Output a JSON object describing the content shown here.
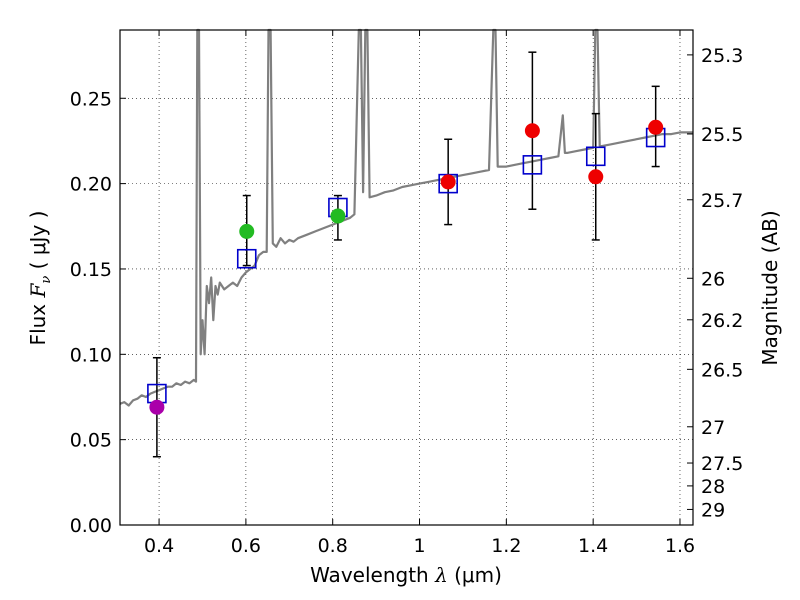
{
  "chart_data": {
    "type": "scatter",
    "xlabel_text": "Wavelength",
    "xlabel_symbol": "λ",
    "xlabel_unit": "(μm)",
    "ylabel_text": "Flux",
    "ylabel_symbol": "F",
    "ylabel_subscript": "ν",
    "ylabel_unit": "( μJy )",
    "ylabel_right": "Magnitude (AB)",
    "xlim": [
      0.31,
      1.63
    ],
    "ylim": [
      0.0,
      0.29
    ],
    "grid": true,
    "x_ticks": [
      0.4,
      0.6,
      0.8,
      1.0,
      1.2,
      1.4,
      1.6
    ],
    "x_tick_labels": [
      "0.4",
      "0.6",
      "0.8",
      "1",
      "1.2",
      "1.4",
      "1.6"
    ],
    "y_ticks": [
      0.0,
      0.05,
      0.1,
      0.15,
      0.2,
      0.25
    ],
    "y_tick_labels": [
      "0.00",
      "0.05",
      "0.10",
      "0.15",
      "0.20",
      "0.25"
    ],
    "mag_ticks": [
      25.3,
      25.5,
      25.7,
      26,
      26.2,
      26.5,
      27,
      27.5,
      28,
      29
    ],
    "mag_tick_labels": [
      "25.3",
      "25.5",
      "25.7",
      "26",
      "26.2",
      "26.5",
      "27",
      "27.5",
      "28",
      "29"
    ],
    "colors": {
      "spectrum": "#808080",
      "model": "#0000cc",
      "purple": "#aa00aa",
      "green": "#22bb22",
      "red": "#ee0000",
      "errorbar": "#000000"
    },
    "spectrum": [
      [
        0.31,
        0.071
      ],
      [
        0.32,
        0.072
      ],
      [
        0.33,
        0.07
      ],
      [
        0.34,
        0.073
      ],
      [
        0.35,
        0.074
      ],
      [
        0.36,
        0.076
      ],
      [
        0.37,
        0.075
      ],
      [
        0.38,
        0.077
      ],
      [
        0.39,
        0.078
      ],
      [
        0.4,
        0.079
      ],
      [
        0.41,
        0.08
      ],
      [
        0.42,
        0.081
      ],
      [
        0.43,
        0.081
      ],
      [
        0.44,
        0.083
      ],
      [
        0.45,
        0.082
      ],
      [
        0.46,
        0.084
      ],
      [
        0.47,
        0.083
      ],
      [
        0.48,
        0.085
      ],
      [
        0.485,
        0.084
      ],
      [
        0.488,
        0.29
      ],
      [
        0.492,
        0.29
      ],
      [
        0.496,
        0.1
      ],
      [
        0.5,
        0.12
      ],
      [
        0.505,
        0.1
      ],
      [
        0.51,
        0.14
      ],
      [
        0.515,
        0.13
      ],
      [
        0.52,
        0.145
      ],
      [
        0.525,
        0.12
      ],
      [
        0.53,
        0.14
      ],
      [
        0.535,
        0.135
      ],
      [
        0.54,
        0.142
      ],
      [
        0.55,
        0.138
      ],
      [
        0.56,
        0.14
      ],
      [
        0.57,
        0.142
      ],
      [
        0.58,
        0.14
      ],
      [
        0.59,
        0.145
      ],
      [
        0.6,
        0.148
      ],
      [
        0.61,
        0.15
      ],
      [
        0.62,
        0.152
      ],
      [
        0.63,
        0.158
      ],
      [
        0.64,
        0.16
      ],
      [
        0.648,
        0.16
      ],
      [
        0.652,
        0.29
      ],
      [
        0.657,
        0.29
      ],
      [
        0.662,
        0.165
      ],
      [
        0.67,
        0.163
      ],
      [
        0.68,
        0.168
      ],
      [
        0.69,
        0.165
      ],
      [
        0.7,
        0.167
      ],
      [
        0.71,
        0.166
      ],
      [
        0.72,
        0.168
      ],
      [
        0.74,
        0.17
      ],
      [
        0.76,
        0.172
      ],
      [
        0.78,
        0.174
      ],
      [
        0.8,
        0.176
      ],
      [
        0.82,
        0.178
      ],
      [
        0.84,
        0.18
      ],
      [
        0.85,
        0.182
      ],
      [
        0.86,
        0.29
      ],
      [
        0.865,
        0.29
      ],
      [
        0.87,
        0.195
      ],
      [
        0.875,
        0.29
      ],
      [
        0.88,
        0.29
      ],
      [
        0.885,
        0.192
      ],
      [
        0.9,
        0.193
      ],
      [
        0.92,
        0.195
      ],
      [
        0.94,
        0.196
      ],
      [
        0.96,
        0.198
      ],
      [
        0.98,
        0.199
      ],
      [
        1.0,
        0.2
      ],
      [
        1.02,
        0.201
      ],
      [
        1.04,
        0.202
      ],
      [
        1.06,
        0.203
      ],
      [
        1.08,
        0.204
      ],
      [
        1.1,
        0.205
      ],
      [
        1.12,
        0.206
      ],
      [
        1.14,
        0.207
      ],
      [
        1.16,
        0.208
      ],
      [
        1.17,
        0.29
      ],
      [
        1.175,
        0.29
      ],
      [
        1.18,
        0.21
      ],
      [
        1.2,
        0.21
      ],
      [
        1.22,
        0.211
      ],
      [
        1.24,
        0.212
      ],
      [
        1.26,
        0.213
      ],
      [
        1.28,
        0.214
      ],
      [
        1.3,
        0.215
      ],
      [
        1.32,
        0.216
      ],
      [
        1.33,
        0.24
      ],
      [
        1.335,
        0.218
      ],
      [
        1.34,
        0.218
      ],
      [
        1.36,
        0.219
      ],
      [
        1.38,
        0.22
      ],
      [
        1.4,
        0.221
      ],
      [
        1.405,
        0.29
      ],
      [
        1.41,
        0.29
      ],
      [
        1.415,
        0.222
      ],
      [
        1.42,
        0.222
      ],
      [
        1.44,
        0.223
      ],
      [
        1.46,
        0.224
      ],
      [
        1.48,
        0.225
      ],
      [
        1.5,
        0.226
      ],
      [
        1.52,
        0.227
      ],
      [
        1.54,
        0.228
      ],
      [
        1.56,
        0.229
      ],
      [
        1.58,
        0.229
      ],
      [
        1.6,
        0.23
      ],
      [
        1.63,
        0.23
      ]
    ],
    "model_points": [
      {
        "x": 0.395,
        "y": 0.077
      },
      {
        "x": 0.602,
        "y": 0.156
      },
      {
        "x": 0.812,
        "y": 0.186
      },
      {
        "x": 1.066,
        "y": 0.2
      },
      {
        "x": 1.26,
        "y": 0.211
      },
      {
        "x": 1.406,
        "y": 0.216
      },
      {
        "x": 1.544,
        "y": 0.227
      }
    ],
    "observed_points": [
      {
        "x": 0.395,
        "y": 0.069,
        "err_low": 0.04,
        "err_high": 0.098,
        "color": "purple"
      },
      {
        "x": 0.602,
        "y": 0.172,
        "err_low": 0.152,
        "err_high": 0.193,
        "color": "green"
      },
      {
        "x": 0.812,
        "y": 0.181,
        "err_low": 0.167,
        "err_high": 0.193,
        "color": "green"
      },
      {
        "x": 1.066,
        "y": 0.201,
        "err_low": 0.176,
        "err_high": 0.226,
        "color": "red"
      },
      {
        "x": 1.26,
        "y": 0.231,
        "err_low": 0.185,
        "err_high": 0.277,
        "color": "red"
      },
      {
        "x": 1.406,
        "y": 0.204,
        "err_low": 0.167,
        "err_high": 0.241,
        "color": "red"
      },
      {
        "x": 1.544,
        "y": 0.233,
        "err_low": 0.21,
        "err_high": 0.257,
        "color": "red"
      }
    ]
  }
}
